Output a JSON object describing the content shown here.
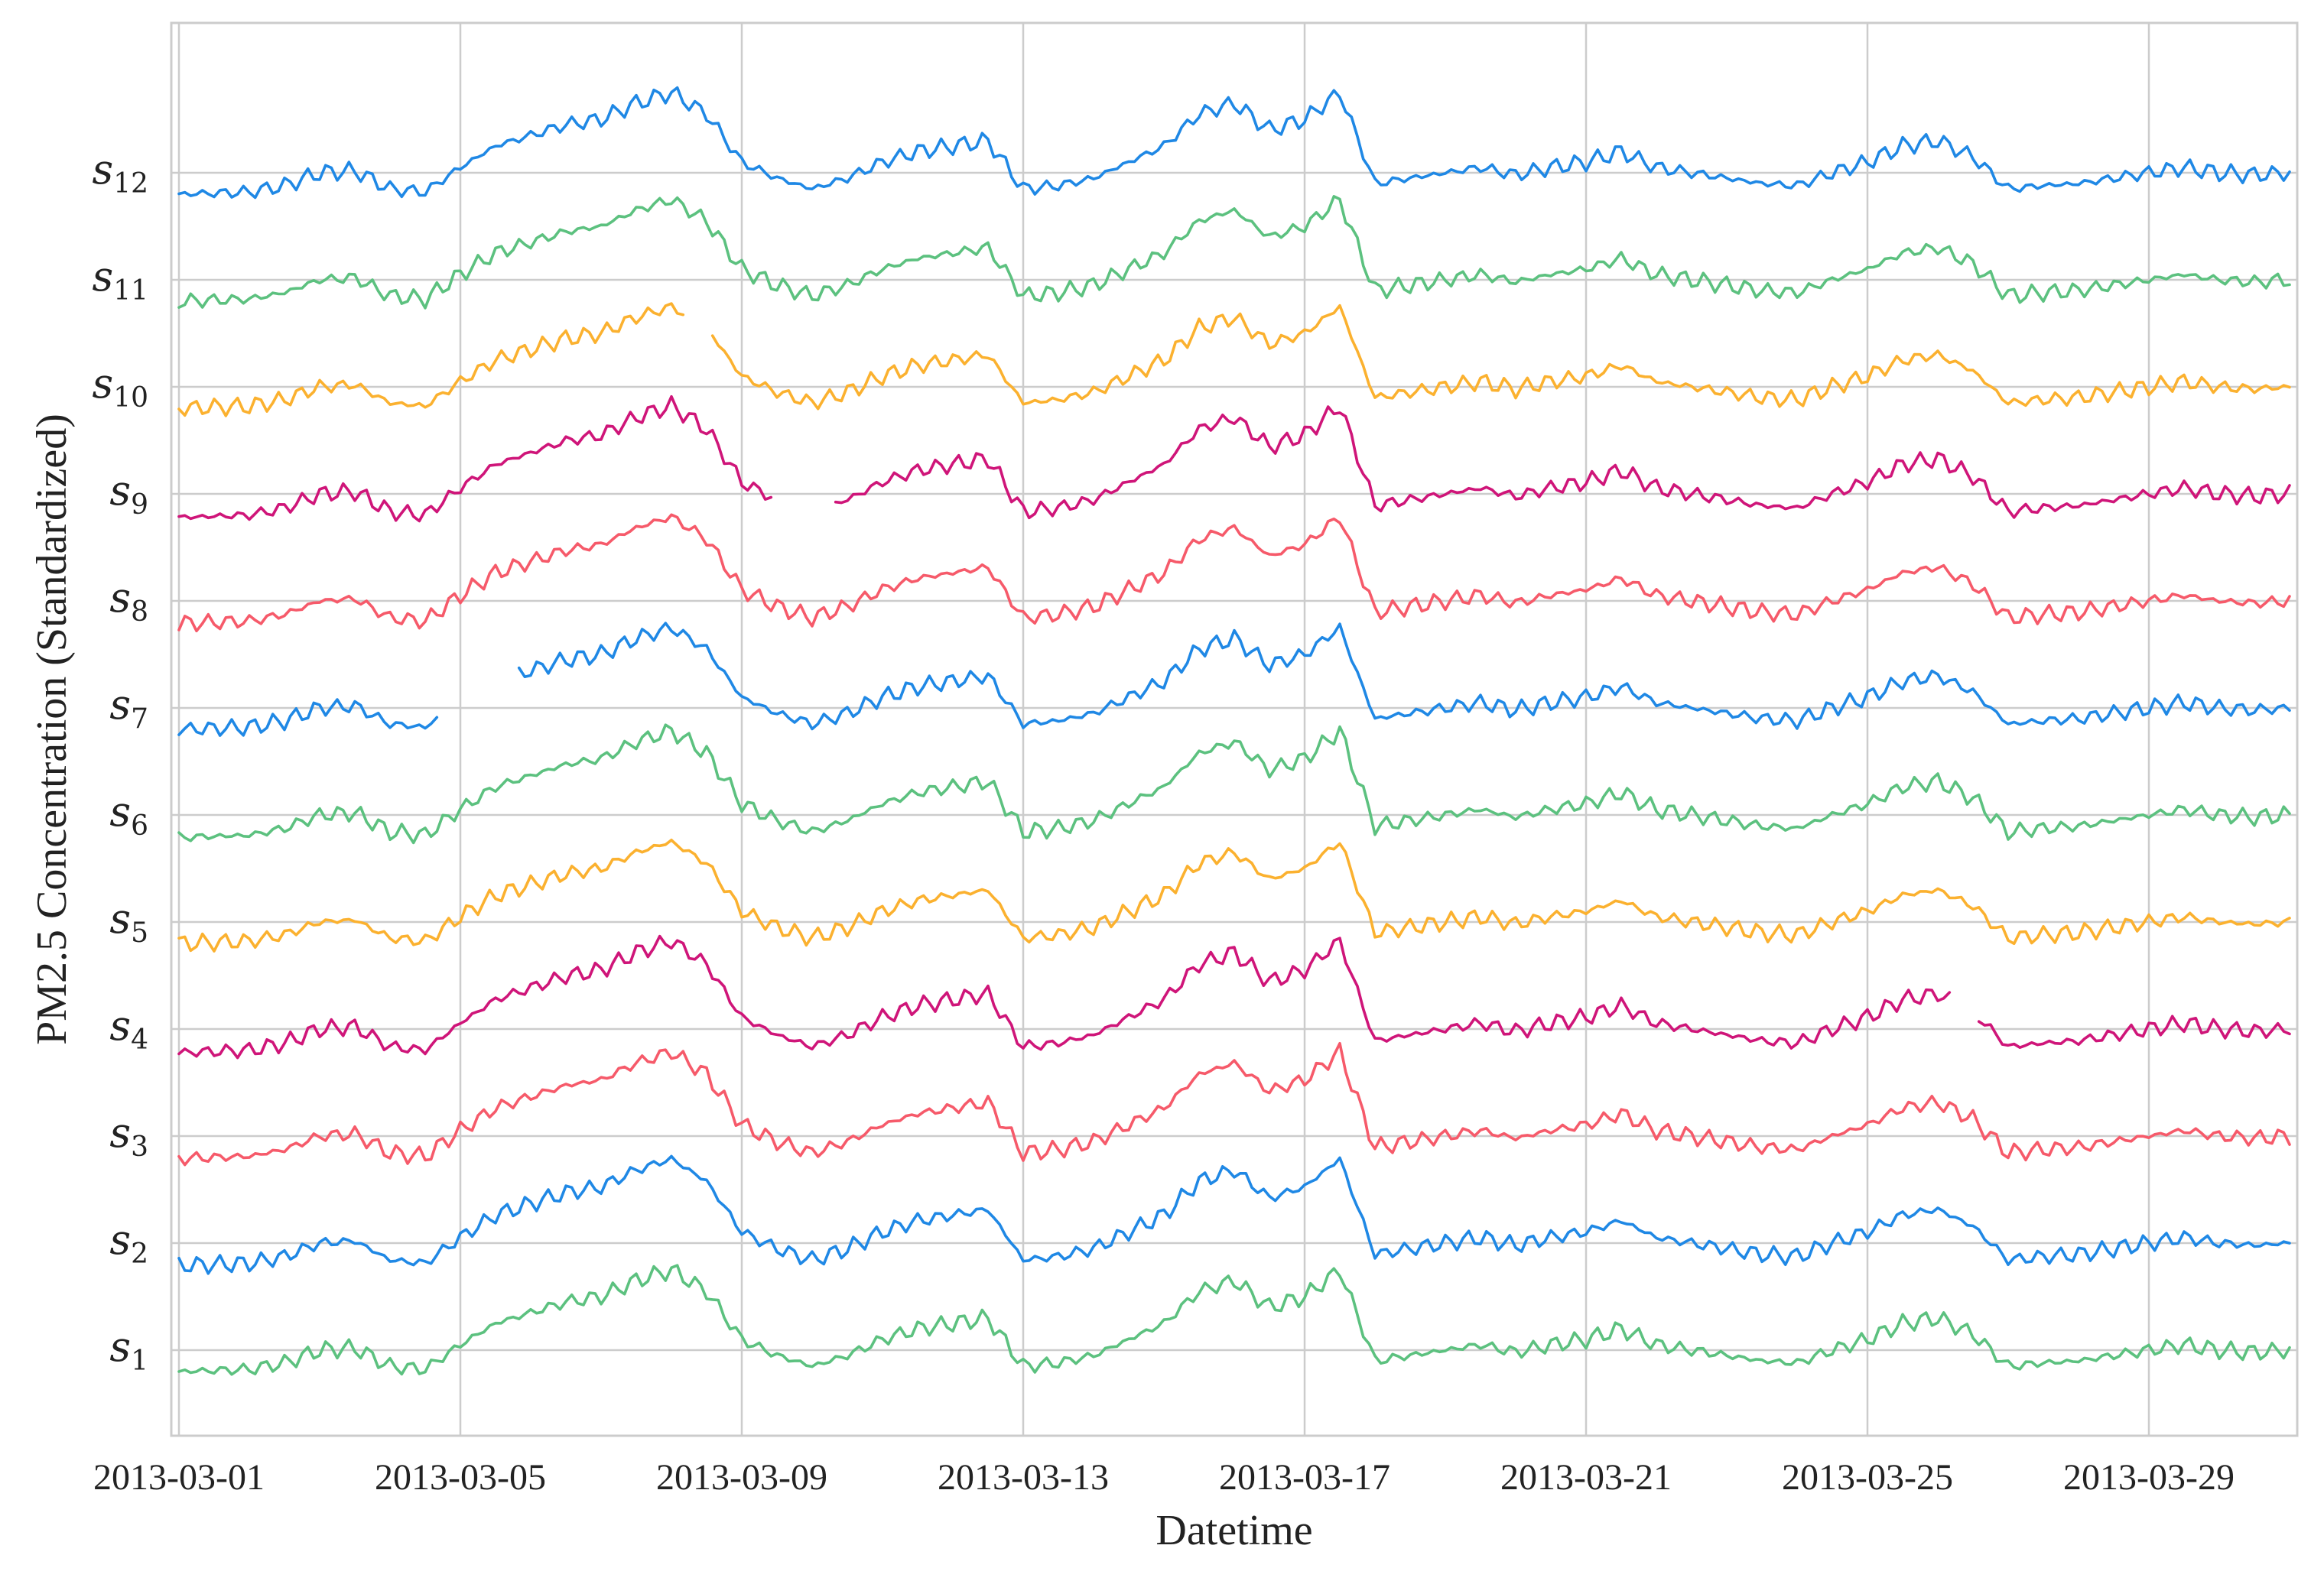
{
  "chart_data": {
    "type": "line",
    "title": "",
    "xlabel": "Datetime",
    "ylabel": "PM2.5 Concentration (Standardized)",
    "x_range": [
      "2013-03-01",
      "2013-03-31"
    ],
    "x_ticks": [
      "2013-03-01",
      "2013-03-05",
      "2013-03-09",
      "2013-03-13",
      "2013-03-17",
      "2013-03-21",
      "2013-03-25",
      "2013-03-29"
    ],
    "y_tick_labels": [
      {
        "base": "s",
        "sub": "1"
      },
      {
        "base": "s",
        "sub": "2"
      },
      {
        "base": "s",
        "sub": "3"
      },
      {
        "base": "s",
        "sub": "4"
      },
      {
        "base": "s",
        "sub": "5"
      },
      {
        "base": "s",
        "sub": "6"
      },
      {
        "base": "s",
        "sub": "7"
      },
      {
        "base": "s",
        "sub": "8"
      },
      {
        "base": "s",
        "sub": "9"
      },
      {
        "base": "s",
        "sub": "10"
      },
      {
        "base": "s",
        "sub": "11"
      },
      {
        "base": "s",
        "sub": "12"
      }
    ],
    "y_range": [
      0.2,
      13.4
    ],
    "grid": true,
    "colors": {
      "blue": "#1f88e5",
      "green": "#5cc17f",
      "orange": "#fbb12f",
      "magenta": "#cf1579",
      "red": "#f65a6a"
    },
    "profile_x": [
      "2013-03-01",
      "2013-03-02",
      "2013-03-02 12:00",
      "2013-03-03",
      "2013-03-03 12:00",
      "2013-03-04",
      "2013-03-04 12:00",
      "2013-03-05",
      "2013-03-05 12:00",
      "2013-03-06",
      "2013-03-06 12:00",
      "2013-03-07",
      "2013-03-07 12:00",
      "2013-03-08",
      "2013-03-08 12:00",
      "2013-03-09",
      "2013-03-09 12:00",
      "2013-03-10",
      "2013-03-10 12:00",
      "2013-03-11",
      "2013-03-11 12:00",
      "2013-03-12",
      "2013-03-12 12:00",
      "2013-03-13",
      "2013-03-13 12:00",
      "2013-03-14",
      "2013-03-14 12:00",
      "2013-03-15",
      "2013-03-15 12:00",
      "2013-03-16",
      "2013-03-16 12:00",
      "2013-03-17",
      "2013-03-17 12:00",
      "2013-03-18",
      "2013-03-18 12:00",
      "2013-03-19",
      "2013-03-19 12:00",
      "2013-03-20",
      "2013-03-20 12:00",
      "2013-03-21",
      "2013-03-21 12:00",
      "2013-03-22",
      "2013-03-22 12:00",
      "2013-03-23",
      "2013-03-23 12:00",
      "2013-03-24",
      "2013-03-24 12:00",
      "2013-03-25",
      "2013-03-25 12:00",
      "2013-03-26",
      "2013-03-26 12:00",
      "2013-03-27",
      "2013-03-27 12:00",
      "2013-03-28",
      "2013-03-28 12:00",
      "2013-03-29",
      "2013-03-29 12:00",
      "2013-03-30",
      "2013-03-30 12:00",
      "2013-03-31"
    ],
    "series": [
      {
        "label_index": 0,
        "color": "#5cc17f",
        "offset": 1,
        "scale": 1.0,
        "gaps": []
      },
      {
        "label_index": 1,
        "color": "#1f88e5",
        "offset": 2,
        "scale": 1.05,
        "gaps": []
      },
      {
        "label_index": 2,
        "color": "#f65a6a",
        "offset": 3,
        "scale": 1.05,
        "gaps": []
      },
      {
        "label_index": 3,
        "color": "#cf1579",
        "offset": 4,
        "scale": 1.1,
        "gaps": [
          [
            "2013-03-26 06:00",
            "2013-03-26 12:00"
          ]
        ]
      },
      {
        "label_index": 4,
        "color": "#fbb12f",
        "offset": 5,
        "scale": 1.0,
        "gaps": []
      },
      {
        "label_index": 5,
        "color": "#5cc17f",
        "offset": 6,
        "scale": 1.05,
        "gaps": []
      },
      {
        "label_index": 6,
        "color": "#1f88e5",
        "offset": 7,
        "scale": 1.0,
        "gaps": [
          [
            "2013-03-04 18:00",
            "2013-03-05 18:00"
          ]
        ]
      },
      {
        "label_index": 7,
        "color": "#f65a6a",
        "offset": 8,
        "scale": 1.05,
        "gaps": []
      },
      {
        "label_index": 8,
        "color": "#cf1579",
        "offset": 9,
        "scale": 1.1,
        "gaps": [
          [
            "2013-03-09 12:00",
            "2013-03-10 06:00"
          ]
        ]
      },
      {
        "label_index": 9,
        "color": "#fbb12f",
        "offset": 10,
        "scale": 1.0,
        "gaps": [
          [
            "2013-03-08 06:00",
            "2013-03-08 12:00"
          ]
        ]
      },
      {
        "label_index": 10,
        "color": "#5cc17f",
        "offset": 11,
        "scale": 1.0,
        "gaps": []
      },
      {
        "label_index": 11,
        "color": "#1f88e5",
        "offset": 12,
        "scale": 1.0,
        "gaps": []
      }
    ],
    "profile_y": [
      -0.2,
      -0.18,
      -0.12,
      0.0,
      0.02,
      -0.15,
      -0.18,
      0.05,
      0.25,
      0.35,
      0.45,
      0.5,
      0.65,
      0.75,
      0.55,
      0.1,
      -0.05,
      -0.15,
      -0.05,
      0.1,
      0.2,
      0.25,
      0.3,
      -0.15,
      -0.12,
      -0.05,
      0.1,
      0.25,
      0.55,
      0.65,
      0.4,
      0.5,
      0.75,
      -0.1,
      -0.05,
      0.0,
      0.05,
      -0.02,
      0.05,
      0.1,
      0.2,
      0.05,
      0.0,
      -0.05,
      -0.1,
      -0.12,
      0.0,
      0.1,
      0.25,
      0.3,
      0.15,
      -0.15,
      -0.12,
      -0.1,
      -0.05,
      0.0,
      0.05,
      0.0,
      -0.02,
      0.0
    ]
  }
}
